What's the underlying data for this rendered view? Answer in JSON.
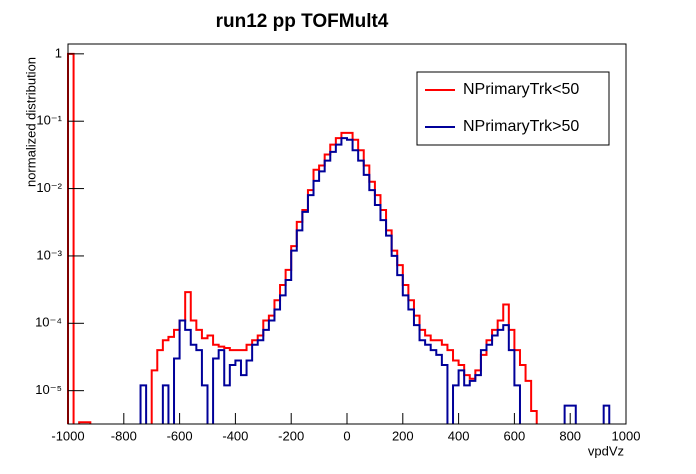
{
  "chart_data": {
    "type": "histogram",
    "title": "run12 pp TOFMult4",
    "xlabel": "vpdVz",
    "ylabel": "normalized distribution",
    "log_y": true,
    "legend": "top right",
    "xlim": [
      -1000,
      1000
    ],
    "ylim": [
      3.2e-06,
      1.4
    ],
    "xticks": [
      -1000,
      -800,
      -600,
      -400,
      -200,
      0,
      200,
      400,
      600,
      800,
      1000
    ],
    "yticks": [
      {
        "value": 1e-05,
        "label": "10⁻⁵"
      },
      {
        "value": 0.0001,
        "label": "10⁻⁴"
      },
      {
        "value": 0.001,
        "label": "10⁻³"
      },
      {
        "value": 0.01,
        "label": "10⁻²"
      },
      {
        "value": 0.1,
        "label": "10⁻¹"
      },
      1
    ],
    "bins": [
      -1000,
      -980,
      -960,
      -940,
      -920,
      -900,
      -880,
      -860,
      -840,
      -820,
      -800,
      -780,
      -760,
      -740,
      -720,
      -700,
      -680,
      -660,
      -640,
      -620,
      -600,
      -580,
      -560,
      -540,
      -520,
      -500,
      -480,
      -460,
      -440,
      -420,
      -400,
      -380,
      -360,
      -340,
      -320,
      -300,
      -280,
      -260,
      -240,
      -220,
      -200,
      -180,
      -160,
      -140,
      -120,
      -100,
      -80,
      -60,
      -40,
      -20,
      0,
      20,
      40,
      60,
      80,
      100,
      120,
      140,
      160,
      180,
      200,
      220,
      240,
      260,
      280,
      300,
      320,
      340,
      360,
      380,
      400,
      420,
      440,
      460,
      480,
      500,
      520,
      540,
      560,
      580,
      600,
      620,
      640,
      660,
      680,
      700,
      720,
      740,
      760,
      780,
      800,
      820,
      840,
      860,
      880,
      900,
      920,
      940,
      960,
      980,
      1000
    ],
    "series": [
      {
        "name": "NPrimaryTrk<50",
        "color": "#ff0000",
        "values": [
          1,
          null,
          3.4e-06,
          3.4e-06,
          null,
          null,
          null,
          null,
          null,
          null,
          null,
          null,
          null,
          null,
          null,
          2e-05,
          4e-05,
          5.6e-05,
          6.3e-05,
          8e-05,
          0.00011,
          0.00029,
          0.00011,
          8e-05,
          6e-05,
          6.6e-05,
          4.8e-05,
          4.5e-05,
          4.3e-05,
          4e-05,
          4e-05,
          4e-05,
          4.8e-05,
          5.6e-05,
          6.6e-05,
          0.00011,
          0.00013,
          0.00022,
          0.00037,
          0.00062,
          0.0014,
          0.0032,
          0.0048,
          0.0095,
          0.019,
          0.022,
          0.032,
          0.045,
          0.056,
          0.067,
          0.067,
          0.053,
          0.037,
          0.022,
          0.0126,
          0.008,
          0.0048,
          0.0024,
          0.0012,
          0.00073,
          0.00037,
          0.00022,
          0.00013,
          8e-05,
          6.6e-05,
          5.6e-05,
          5.6e-05,
          4.8e-05,
          4e-05,
          2.8e-05,
          2.4e-05,
          1.7e-05,
          1.5e-05,
          2e-05,
          3.4e-05,
          5.6e-05,
          8e-05,
          0.00011,
          0.00019,
          8e-05,
          4e-05,
          2.4e-05,
          1.4e-05,
          5e-06,
          null,
          null,
          null,
          null,
          null,
          null,
          null,
          null,
          null,
          null,
          null,
          null,
          null,
          null,
          null,
          null
        ]
      },
      {
        "name": "NPrimaryTrk>50",
        "color": "#000099",
        "values": [
          null,
          null,
          null,
          null,
          null,
          null,
          null,
          null,
          null,
          null,
          null,
          null,
          null,
          1.2e-05,
          null,
          null,
          null,
          1.2e-05,
          null,
          3e-05,
          0.00011,
          8e-05,
          4.8e-05,
          4e-05,
          1.2e-05,
          null,
          3e-05,
          4e-05,
          1.2e-05,
          2.4e-05,
          2.8e-05,
          1.7e-05,
          2.8e-05,
          4.8e-05,
          5.6e-05,
          8e-05,
          0.00011,
          0.00016,
          0.00026,
          0.00044,
          0.0012,
          0.0024,
          0.0045,
          0.008,
          0.013,
          0.018,
          0.026,
          0.035,
          0.045,
          0.056,
          0.053,
          0.037,
          0.026,
          0.016,
          0.0095,
          0.0057,
          0.0034,
          0.002,
          0.001,
          0.00052,
          0.00026,
          0.00016,
          9.4e-05,
          5.6e-05,
          4.8e-05,
          4e-05,
          3.4e-05,
          2.4e-05,
          null,
          1.2e-05,
          2e-05,
          1.2e-05,
          1.4e-05,
          1.7e-05,
          4e-05,
          4.8e-05,
          6.6e-05,
          8e-05,
          9.4e-05,
          4e-05,
          1.2e-05,
          null,
          null,
          null,
          null,
          null,
          null,
          null,
          null,
          6e-06,
          6e-06,
          null,
          null,
          null,
          null,
          null,
          6e-06,
          null,
          null,
          null
        ]
      }
    ]
  }
}
